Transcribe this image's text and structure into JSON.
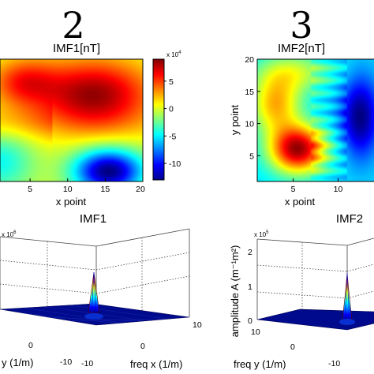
{
  "figure": {
    "panel_numbers": [
      "2",
      "3"
    ]
  },
  "chart_data": [
    {
      "type": "heatmap",
      "title": "IMF1[nT]",
      "xlabel": "x point",
      "ylabel": "",
      "x_ticks": [
        "5",
        "10",
        "15",
        "20"
      ],
      "xlim": [
        1,
        20
      ],
      "ylim": [
        1,
        20
      ],
      "colorbar": {
        "exponent_label": "x 10",
        "exponent": "4",
        "ticks": [
          "5",
          "0",
          "-5",
          "-10"
        ],
        "range": [
          -13,
          9
        ]
      },
      "peaks": [
        {
          "x": 13.5,
          "y": 14.5,
          "value": 8.5
        },
        {
          "x": 4,
          "y": 16,
          "value": 5
        },
        {
          "x": 15,
          "y": 3,
          "value": -13
        },
        {
          "x": 2,
          "y": 4,
          "value": -4
        }
      ]
    },
    {
      "type": "heatmap",
      "title": "IMF2[nT]",
      "xlabel": "x point",
      "ylabel": "y point",
      "x_ticks": [
        "5",
        "10"
      ],
      "y_ticks": [
        "5",
        "10",
        "15",
        "20"
      ],
      "xlim": [
        1,
        14
      ],
      "ylim": [
        1,
        20
      ]
    },
    {
      "type": "surface",
      "title": "IMF1",
      "exponent_label": "x 10",
      "exponent": "6",
      "xlabel": "freq x (1/m)",
      "ylabel": "y (1/m)",
      "x_ticks": [
        "10",
        "0",
        "-10"
      ],
      "y_ticks": [
        "0",
        "-10"
      ],
      "peak_value": 3
    },
    {
      "type": "surface",
      "title": "IMF2",
      "exponent_label": "x 10",
      "exponent": "5",
      "zlabel": "amplitude A (m⁻¹m²)",
      "xlabel": "freq y (1/m)",
      "z_ticks": [
        "2",
        "1",
        "0"
      ],
      "x_ticks": [
        "10",
        "0",
        "-10"
      ],
      "peak_value": 1.9
    }
  ]
}
